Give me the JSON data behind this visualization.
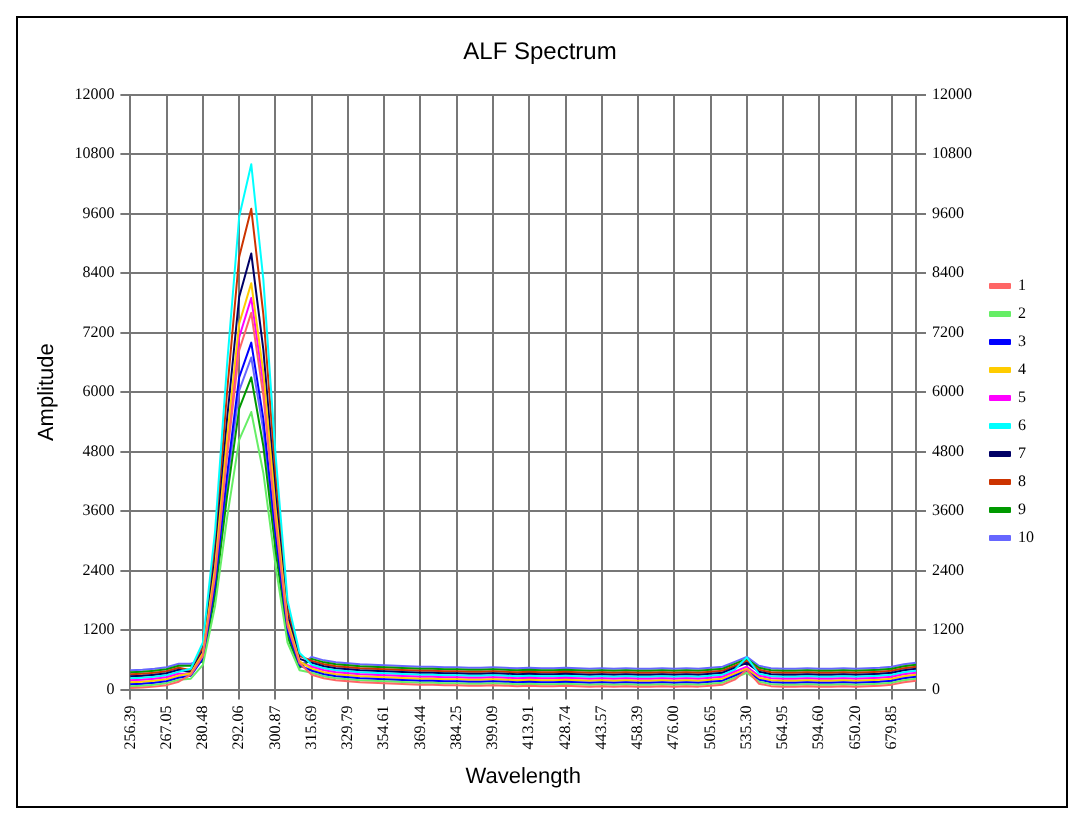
{
  "chart_data": {
    "type": "line",
    "title": "ALF Spectrum",
    "xlabel": "Wavelength",
    "ylabel": "Amplitude",
    "categories": [
      "256.39",
      null,
      null,
      "267.05",
      null,
      null,
      "280.48",
      null,
      null,
      "292.06",
      null,
      null,
      "300.87",
      null,
      null,
      "315.69",
      null,
      null,
      "329.79",
      null,
      null,
      "354.61",
      null,
      null,
      "369.44",
      null,
      null,
      "384.25",
      null,
      null,
      "399.09",
      null,
      null,
      "413.91",
      null,
      null,
      "428.74",
      null,
      null,
      "443.57",
      null,
      null,
      "458.39",
      null,
      null,
      "476.00",
      null,
      null,
      "505.65",
      null,
      null,
      "535.30",
      null,
      null,
      "564.95",
      null,
      null,
      "594.60",
      null,
      null,
      "650.20",
      null,
      null,
      "679.85",
      null,
      null
    ],
    "ylim": [
      0,
      12000
    ],
    "yticks": [
      0,
      1200,
      2400,
      3600,
      4800,
      6000,
      7200,
      8400,
      9600,
      10800,
      12000
    ],
    "y2lim": [
      0,
      12000
    ],
    "y2ticks": [
      0,
      1200,
      2400,
      3600,
      4800,
      6000,
      7200,
      8400,
      9600,
      10800,
      12000
    ],
    "grid": true,
    "legend": "right",
    "marker": "none",
    "line_style": "solid",
    "series": [
      {
        "name": "1",
        "color": "#ff6666",
        "values": [
          30,
          40,
          60,
          90,
          160,
          300,
          680,
          2280,
          4710,
          6840,
          7600,
          5930,
          3420,
          1290,
          530,
          300,
          230,
          190,
          170,
          150,
          140,
          130,
          120,
          110,
          100,
          100,
          90,
          90,
          80,
          80,
          90,
          80,
          70,
          80,
          70,
          70,
          80,
          70,
          60,
          70,
          60,
          70,
          60,
          60,
          70,
          60,
          70,
          60,
          80,
          100,
          200,
          400,
          120,
          70,
          60,
          60,
          70,
          60,
          60,
          70,
          60,
          70,
          80,
          100,
          150,
          180
        ]
      },
      {
        "name": "2",
        "color": "#66ee66",
        "values": [
          70,
          80,
          100,
          130,
          200,
          220,
          500,
          1680,
          3470,
          5040,
          5600,
          4370,
          2520,
          950,
          390,
          340,
          270,
          230,
          210,
          190,
          180,
          170,
          160,
          150,
          140,
          140,
          130,
          130,
          120,
          120,
          130,
          120,
          110,
          120,
          110,
          110,
          120,
          110,
          100,
          110,
          100,
          110,
          100,
          100,
          110,
          100,
          110,
          100,
          120,
          140,
          240,
          340,
          160,
          110,
          100,
          100,
          110,
          100,
          100,
          110,
          100,
          110,
          120,
          140,
          190,
          220
        ]
      },
      {
        "name": "3",
        "color": "#0000ff",
        "values": [
          110,
          120,
          140,
          170,
          240,
          280,
          630,
          2100,
          4340,
          6300,
          7000,
          5460,
          3150,
          1190,
          490,
          380,
          310,
          270,
          250,
          230,
          220,
          210,
          200,
          190,
          180,
          180,
          170,
          170,
          160,
          160,
          170,
          160,
          150,
          160,
          150,
          150,
          160,
          150,
          140,
          150,
          140,
          150,
          140,
          140,
          150,
          140,
          150,
          140,
          160,
          180,
          280,
          380,
          200,
          150,
          140,
          140,
          150,
          140,
          140,
          150,
          140,
          150,
          160,
          180,
          230,
          260
        ]
      },
      {
        "name": "4",
        "color": "#ffcc00",
        "values": [
          150,
          160,
          180,
          210,
          280,
          330,
          740,
          2460,
          5080,
          7380,
          8200,
          6400,
          3690,
          1390,
          570,
          420,
          350,
          310,
          290,
          270,
          260,
          250,
          240,
          230,
          220,
          220,
          210,
          210,
          200,
          200,
          210,
          200,
          190,
          200,
          190,
          190,
          200,
          190,
          180,
          190,
          180,
          190,
          180,
          180,
          190,
          180,
          190,
          180,
          200,
          220,
          320,
          420,
          240,
          190,
          180,
          180,
          190,
          180,
          180,
          190,
          180,
          190,
          200,
          220,
          270,
          300
        ]
      },
      {
        "name": "5",
        "color": "#ff00ff",
        "values": [
          190,
          200,
          220,
          250,
          320,
          320,
          710,
          2370,
          4900,
          7110,
          7900,
          6160,
          3560,
          1340,
          550,
          460,
          390,
          350,
          330,
          310,
          300,
          290,
          280,
          270,
          260,
          260,
          250,
          250,
          240,
          240,
          250,
          240,
          230,
          240,
          230,
          230,
          240,
          230,
          220,
          230,
          220,
          230,
          220,
          220,
          230,
          220,
          230,
          220,
          240,
          260,
          360,
          460,
          280,
          230,
          220,
          220,
          230,
          220,
          220,
          230,
          220,
          230,
          240,
          260,
          310,
          340
        ]
      },
      {
        "name": "6",
        "color": "#00ffff",
        "values": [
          230,
          240,
          260,
          290,
          360,
          420,
          950,
          3180,
          6570,
          9540,
          10600,
          8270,
          4770,
          1800,
          740,
          500,
          430,
          390,
          370,
          350,
          340,
          330,
          320,
          310,
          300,
          300,
          290,
          290,
          280,
          280,
          290,
          280,
          270,
          280,
          270,
          270,
          280,
          270,
          260,
          270,
          260,
          270,
          260,
          260,
          270,
          260,
          270,
          260,
          280,
          300,
          400,
          650,
          320,
          270,
          260,
          260,
          270,
          260,
          260,
          270,
          260,
          270,
          280,
          300,
          350,
          380
        ]
      },
      {
        "name": "7",
        "color": "#000066",
        "values": [
          270,
          280,
          300,
          330,
          400,
          350,
          790,
          2640,
          5460,
          7920,
          8800,
          6860,
          3960,
          1500,
          620,
          540,
          470,
          430,
          410,
          390,
          380,
          370,
          360,
          350,
          340,
          340,
          330,
          330,
          320,
          320,
          330,
          320,
          310,
          320,
          310,
          310,
          320,
          310,
          300,
          310,
          300,
          310,
          300,
          300,
          310,
          300,
          310,
          300,
          320,
          340,
          440,
          540,
          360,
          310,
          300,
          300,
          310,
          300,
          300,
          310,
          300,
          310,
          320,
          340,
          390,
          420
        ]
      },
      {
        "name": "8",
        "color": "#cc3300",
        "values": [
          310,
          320,
          340,
          370,
          440,
          390,
          870,
          2910,
          6010,
          8730,
          9700,
          7570,
          4370,
          1650,
          680,
          580,
          510,
          470,
          450,
          430,
          420,
          410,
          400,
          390,
          380,
          380,
          370,
          370,
          360,
          360,
          370,
          360,
          350,
          360,
          350,
          350,
          360,
          350,
          340,
          350,
          340,
          350,
          340,
          340,
          350,
          340,
          350,
          340,
          360,
          380,
          480,
          580,
          400,
          350,
          340,
          340,
          350,
          340,
          340,
          350,
          340,
          350,
          360,
          380,
          430,
          460
        ]
      },
      {
        "name": "9",
        "color": "#009900",
        "values": [
          350,
          360,
          380,
          410,
          480,
          480,
          570,
          1890,
          3910,
          5670,
          6300,
          4910,
          2840,
          1070,
          440,
          620,
          550,
          510,
          490,
          470,
          460,
          450,
          440,
          430,
          420,
          420,
          410,
          410,
          400,
          400,
          410,
          400,
          390,
          400,
          390,
          390,
          400,
          390,
          380,
          390,
          380,
          390,
          380,
          380,
          390,
          380,
          390,
          380,
          400,
          420,
          520,
          620,
          440,
          390,
          380,
          380,
          390,
          380,
          380,
          390,
          380,
          390,
          400,
          420,
          470,
          500
        ]
      },
      {
        "name": "10",
        "color": "#6666ff",
        "values": [
          390,
          400,
          420,
          450,
          520,
          520,
          600,
          2010,
          4150,
          6030,
          6700,
          5230,
          3020,
          1140,
          470,
          660,
          590,
          550,
          530,
          510,
          500,
          490,
          480,
          470,
          460,
          460,
          450,
          450,
          440,
          440,
          450,
          440,
          430,
          440,
          430,
          430,
          440,
          430,
          420,
          430,
          420,
          430,
          420,
          420,
          430,
          420,
          430,
          420,
          440,
          460,
          560,
          660,
          480,
          430,
          420,
          420,
          430,
          420,
          420,
          430,
          420,
          430,
          440,
          460,
          510,
          540
        ]
      }
    ]
  }
}
